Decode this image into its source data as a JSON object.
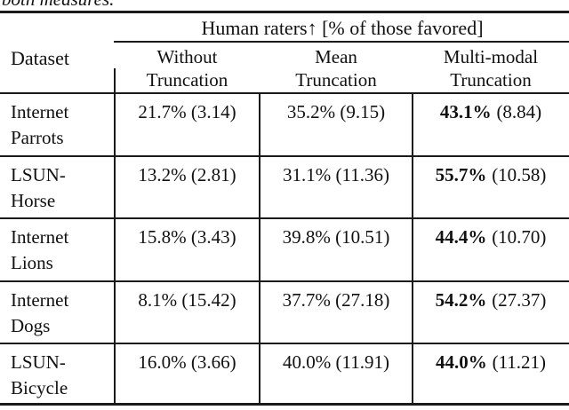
{
  "caption_fragment": "both measures.",
  "table": {
    "group_header": "Human raters↑ [% of those favored]",
    "dataset_header": "Dataset",
    "col_headers": [
      {
        "line1": "Without",
        "line2": "Truncation"
      },
      {
        "line1": "Mean",
        "line2": "Truncation"
      },
      {
        "line1": "Multi-modal",
        "line2": "Truncation"
      }
    ],
    "rows": [
      {
        "dataset1": "Internet",
        "dataset2": "Parrots",
        "without": "21.7% (3.14)",
        "mean": "35.2% (9.15)",
        "multi_pct": "43.1%",
        "multi_std": "(8.84)"
      },
      {
        "dataset1": "LSUN-",
        "dataset2": "Horse",
        "without": "13.2% (2.81)",
        "mean": "31.1% (11.36)",
        "multi_pct": "55.7%",
        "multi_std": "(10.58)"
      },
      {
        "dataset1": "Internet",
        "dataset2": "Lions",
        "without": "15.8% (3.43)",
        "mean": "39.8% (10.51)",
        "multi_pct": "44.4%",
        "multi_std": "(10.70)"
      },
      {
        "dataset1": "Internet",
        "dataset2": "Dogs",
        "without": "8.1% (15.42)",
        "mean": "37.7% (27.18)",
        "multi_pct": "54.2%",
        "multi_std": "(27.37)"
      },
      {
        "dataset1": "LSUN-",
        "dataset2": "Bicycle",
        "without": "16.0% (3.66)",
        "mean": "40.0% (11.91)",
        "multi_pct": "44.0%",
        "multi_std": "(11.21)"
      }
    ]
  },
  "colors": {
    "text": "#111111",
    "rule": "#1a1a1a",
    "background": "#ffffff"
  }
}
